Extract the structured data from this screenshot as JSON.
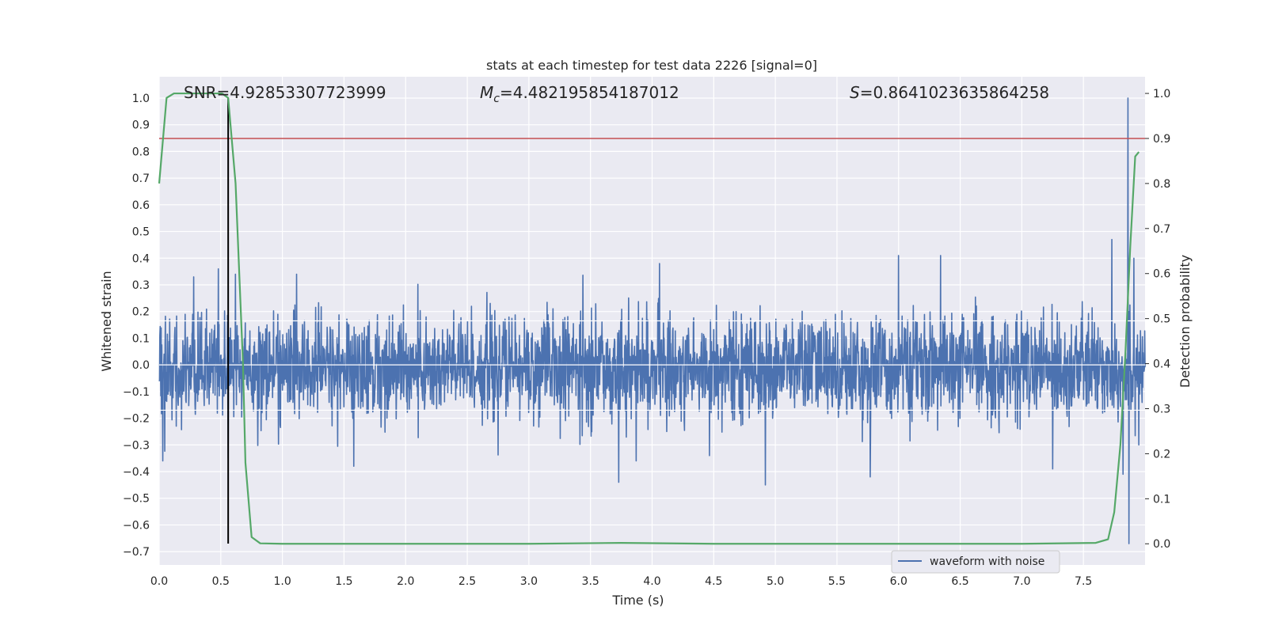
{
  "chart_data": {
    "type": "line",
    "title": "stats at each timestep for test data 2226 [signal=0]",
    "xlabel": "Time (s)",
    "ylabel_left": "Whitened strain",
    "ylabel_right": "Detection probability",
    "xlim": [
      0,
      8.0
    ],
    "ylim_left": [
      -0.75,
      1.08
    ],
    "ylim_right": [
      -0.047,
      1.037
    ],
    "x_ticks": [
      0.0,
      0.5,
      1.0,
      1.5,
      2.0,
      2.5,
      3.0,
      3.5,
      4.0,
      4.5,
      5.0,
      5.5,
      6.0,
      6.5,
      7.0,
      7.5
    ],
    "x_tick_labels": [
      "0.0",
      "0.5",
      "1.0",
      "1.5",
      "2.0",
      "2.5",
      "3.0",
      "3.5",
      "4.0",
      "4.5",
      "5.0",
      "5.5",
      "6.0",
      "6.5",
      "7.0",
      "7.5"
    ],
    "y_left_ticks": [
      1.0,
      0.9,
      0.8,
      0.7,
      0.6,
      0.5,
      0.4,
      0.3,
      0.2,
      0.1,
      0.0,
      -0.1,
      -0.2,
      -0.3,
      -0.4,
      -0.5,
      -0.6,
      -0.7
    ],
    "y_left_tick_labels": [
      "1.0",
      "0.9",
      "0.8",
      "0.7",
      "0.6",
      "0.5",
      "0.4",
      "0.3",
      "0.2",
      "0.1",
      "0.0",
      "−0.1",
      "−0.2",
      "−0.3",
      "−0.4",
      "−0.5",
      "−0.6",
      "−0.7"
    ],
    "y_right_ticks": [
      1.0,
      0.9,
      0.8,
      0.7,
      0.6,
      0.5,
      0.4,
      0.3,
      0.2,
      0.1,
      0.0
    ],
    "y_right_tick_labels": [
      "1.0",
      "0.9",
      "0.8",
      "0.7",
      "0.6",
      "0.5",
      "0.4",
      "0.3",
      "0.2",
      "0.1",
      "0.0"
    ],
    "grid": true,
    "legend_position": "lower-right",
    "annotations": {
      "snr": "SNR=4.92853307723999",
      "mc_symbol": "M",
      "mc_subscript": "c",
      "mc_value": "=4.482195854187012",
      "s_symbol": "S",
      "s_value": "=0.8641023635864258"
    },
    "series": [
      {
        "name": "waveform with noise",
        "axis": "left",
        "color": "#4c72b0",
        "kind": "noise",
        "x_range": [
          0,
          8.0
        ],
        "typical_extent": [
          -0.2,
          0.22
        ],
        "peaks": [
          {
            "x": 0.03,
            "y": -0.36
          },
          {
            "x": 0.28,
            "y": 0.33
          },
          {
            "x": 0.48,
            "y": 0.36
          },
          {
            "x": 0.56,
            "y": -0.35
          },
          {
            "x": 0.62,
            "y": 0.34
          },
          {
            "x": 1.58,
            "y": -0.38
          },
          {
            "x": 3.73,
            "y": -0.44
          },
          {
            "x": 3.87,
            "y": -0.36
          },
          {
            "x": 4.06,
            "y": 0.38
          },
          {
            "x": 4.92,
            "y": -0.45
          },
          {
            "x": 5.77,
            "y": -0.42
          },
          {
            "x": 6.0,
            "y": 0.41
          },
          {
            "x": 6.34,
            "y": 0.41
          },
          {
            "x": 7.25,
            "y": -0.39
          },
          {
            "x": 7.73,
            "y": 0.47
          },
          {
            "x": 7.82,
            "y": -0.41
          },
          {
            "x": 7.86,
            "y": 1.0
          },
          {
            "x": 7.87,
            "y": -0.67
          },
          {
            "x": 7.91,
            "y": 0.4
          },
          {
            "x": 7.95,
            "y": -0.3
          }
        ]
      },
      {
        "name": "detection probability",
        "axis": "right",
        "color": "#55a868",
        "x": [
          0.0,
          0.06,
          0.12,
          0.25,
          0.4,
          0.51,
          0.56,
          0.62,
          0.68,
          0.7,
          0.75,
          0.82,
          1.0,
          2.0,
          3.0,
          3.75,
          4.5,
          5.0,
          6.0,
          7.0,
          7.6,
          7.7,
          7.75,
          7.8,
          7.84,
          7.88,
          7.92,
          7.95
        ],
        "values": [
          0.8,
          0.99,
          1.0,
          1.0,
          1.0,
          1.0,
          0.99,
          0.8,
          0.4,
          0.18,
          0.015,
          0.001,
          0.0,
          0.0,
          0.0,
          0.002,
          0.0,
          0.0,
          0.0,
          0.0,
          0.002,
          0.01,
          0.07,
          0.22,
          0.42,
          0.66,
          0.86,
          0.87
        ]
      }
    ],
    "threshold": {
      "axis": "right",
      "value": 0.9,
      "color": "#c44e52"
    },
    "marker": {
      "x": 0.56,
      "y_from": -0.67,
      "y_to": 1.0,
      "color": "#000000"
    }
  }
}
